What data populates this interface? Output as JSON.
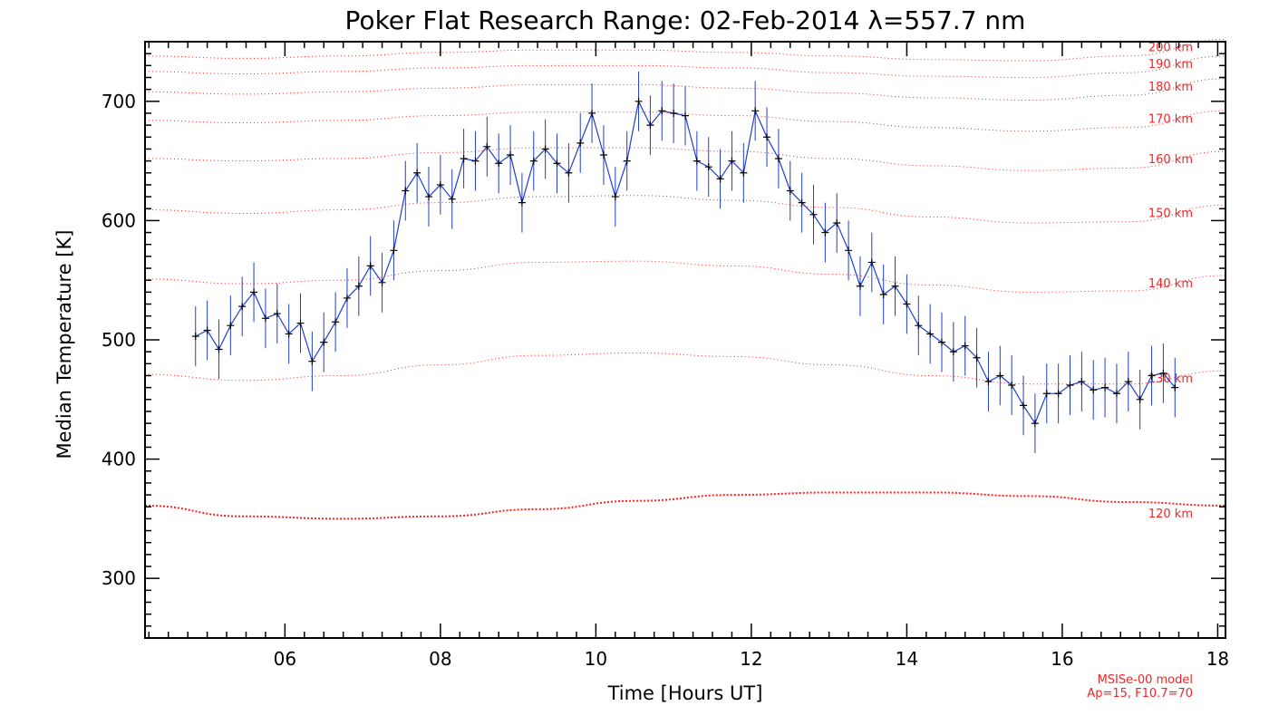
{
  "chart_data": {
    "type": "line",
    "title": "Poker Flat Research Range: 02-Feb-2014 λ=557.7 nm",
    "xlabel": "Time [Hours UT]",
    "ylabel": "Median Temperature [K]",
    "xlim": [
      4.2,
      18.1
    ],
    "ylim": [
      250,
      750
    ],
    "x_ticks": [
      {
        "value": 6,
        "label": "06"
      },
      {
        "value": 8,
        "label": "08"
      },
      {
        "value": 10,
        "label": "10"
      },
      {
        "value": 12,
        "label": "12"
      },
      {
        "value": 14,
        "label": "14"
      },
      {
        "value": 16,
        "label": "16"
      },
      {
        "value": 18,
        "label": "18"
      }
    ],
    "y_ticks": [
      {
        "value": 300,
        "label": "300"
      },
      {
        "value": 400,
        "label": "400"
      },
      {
        "value": 500,
        "label": "500"
      },
      {
        "value": 600,
        "label": "600"
      },
      {
        "value": 700,
        "label": "700"
      }
    ],
    "grid": false,
    "series": [
      {
        "color": "#1f3fd0",
        "marker_color": "#000000",
        "error_bar": 25,
        "points": [
          [
            4.85,
            503
          ],
          [
            5.0,
            508
          ],
          [
            5.15,
            492
          ],
          [
            5.3,
            512
          ],
          [
            5.45,
            528
          ],
          [
            5.6,
            540
          ],
          [
            5.75,
            518
          ],
          [
            5.9,
            522
          ],
          [
            6.05,
            505
          ],
          [
            6.2,
            514
          ],
          [
            6.35,
            482
          ],
          [
            6.5,
            498
          ],
          [
            6.65,
            515
          ],
          [
            6.8,
            535
          ],
          [
            6.95,
            545
          ],
          [
            7.1,
            562
          ],
          [
            7.25,
            548
          ],
          [
            7.4,
            575
          ],
          [
            7.55,
            625
          ],
          [
            7.7,
            640
          ],
          [
            7.85,
            620
          ],
          [
            8.0,
            630
          ],
          [
            8.15,
            618
          ],
          [
            8.3,
            652
          ],
          [
            8.45,
            650
          ],
          [
            8.6,
            662
          ],
          [
            8.75,
            648
          ],
          [
            8.9,
            655
          ],
          [
            9.05,
            615
          ],
          [
            9.2,
            650
          ],
          [
            9.35,
            660
          ],
          [
            9.5,
            648
          ],
          [
            9.65,
            640
          ],
          [
            9.8,
            665
          ],
          [
            9.95,
            690
          ],
          [
            10.1,
            655
          ],
          [
            10.25,
            620
          ],
          [
            10.4,
            650
          ],
          [
            10.55,
            700
          ],
          [
            10.7,
            680
          ],
          [
            10.85,
            692
          ],
          [
            11.0,
            690
          ],
          [
            11.15,
            688
          ],
          [
            11.3,
            650
          ],
          [
            11.45,
            645
          ],
          [
            11.6,
            635
          ],
          [
            11.75,
            650
          ],
          [
            11.9,
            640
          ],
          [
            12.05,
            692
          ],
          [
            12.2,
            670
          ],
          [
            12.35,
            652
          ],
          [
            12.5,
            625
          ],
          [
            12.65,
            615
          ],
          [
            12.8,
            605
          ],
          [
            12.95,
            590
          ],
          [
            13.1,
            598
          ],
          [
            13.25,
            575
          ],
          [
            13.4,
            545
          ],
          [
            13.55,
            565
          ],
          [
            13.7,
            538
          ],
          [
            13.85,
            545
          ],
          [
            14.0,
            530
          ],
          [
            14.15,
            512
          ],
          [
            14.3,
            505
          ],
          [
            14.45,
            498
          ],
          [
            14.6,
            490
          ],
          [
            14.75,
            495
          ],
          [
            14.9,
            485
          ],
          [
            15.05,
            465
          ],
          [
            15.2,
            470
          ],
          [
            15.35,
            462
          ],
          [
            15.5,
            445
          ],
          [
            15.65,
            430
          ],
          [
            15.8,
            455
          ],
          [
            15.95,
            455
          ],
          [
            16.1,
            462
          ],
          [
            16.25,
            465
          ],
          [
            16.4,
            458
          ],
          [
            16.55,
            460
          ],
          [
            16.7,
            455
          ],
          [
            16.85,
            465
          ],
          [
            17.0,
            450
          ],
          [
            17.15,
            470
          ],
          [
            17.3,
            472
          ],
          [
            17.45,
            460
          ]
        ]
      }
    ],
    "model_curves": [
      {
        "label": "120 km",
        "values": [
          361,
          352,
          350,
          352,
          358,
          365,
          370,
          372,
          372,
          369,
          364,
          361
        ],
        "bold": true
      },
      {
        "label": "130 km",
        "values": [
          471,
          466,
          470,
          479,
          487,
          489,
          486,
          479,
          470,
          463,
          463,
          474
        ],
        "bold": false
      },
      {
        "label": "140 km",
        "values": [
          551,
          547,
          550,
          558,
          565,
          566,
          562,
          555,
          546,
          540,
          541,
          554
        ],
        "bold": false
      },
      {
        "label": "150 km",
        "values": [
          609,
          606,
          609,
          615,
          620,
          621,
          617,
          611,
          603,
          598,
          599,
          613
        ],
        "bold": false
      },
      {
        "label": "160 km",
        "values": [
          652,
          650,
          652,
          657,
          661,
          661,
          658,
          652,
          646,
          642,
          644,
          658
        ],
        "bold": false
      },
      {
        "label": "170 km",
        "values": [
          684,
          682,
          684,
          688,
          691,
          691,
          688,
          683,
          678,
          675,
          678,
          692
        ],
        "bold": false
      },
      {
        "label": "180 km",
        "values": [
          708,
          706,
          708,
          711,
          714,
          714,
          711,
          707,
          703,
          701,
          705,
          719
        ],
        "bold": false
      },
      {
        "label": "190 km",
        "values": [
          725,
          723,
          725,
          728,
          730,
          730,
          728,
          724,
          721,
          720,
          724,
          738
        ],
        "bold": false
      },
      {
        "label": "200 km",
        "values": [
          738,
          736,
          738,
          741,
          743,
          743,
          741,
          738,
          735,
          734,
          738,
          752
        ],
        "bold": false
      }
    ],
    "model_color": "#ff2020",
    "model_note_lines": [
      "MSISe-00 model",
      "Ap=15, F10.7=70"
    ]
  }
}
